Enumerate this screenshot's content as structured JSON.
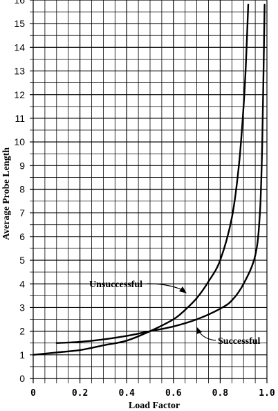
{
  "chart_data": {
    "type": "line",
    "title": "",
    "xlabel": "Load Factor",
    "ylabel": "Average Probe Length",
    "xlim": [
      0,
      1.0
    ],
    "ylim": [
      0,
      16
    ],
    "x_ticks": [
      0,
      0.2,
      0.4,
      0.6,
      0.8,
      1.0
    ],
    "x_tick_labels": [
      "0",
      "0.2",
      "0.4",
      "0.6",
      "0.8",
      "1.0"
    ],
    "y_ticks": [
      0,
      1,
      2,
      3,
      4,
      5,
      6,
      7,
      8,
      9,
      10,
      11,
      12,
      13,
      14,
      15,
      16
    ],
    "y_tick_labels": [
      "0",
      "1",
      "2",
      "3",
      "4",
      "5",
      "6",
      "7",
      "8",
      "9",
      "10",
      "11",
      "12",
      "13",
      "14",
      "15",
      "16"
    ],
    "grid": true,
    "series": [
      {
        "name": "Unsuccessful",
        "x": [
          0.0,
          0.1,
          0.2,
          0.3,
          0.4,
          0.5,
          0.6,
          0.65,
          0.7,
          0.75,
          0.8,
          0.85,
          0.88,
          0.9,
          0.91,
          0.92
        ],
        "y": [
          1.0,
          1.1,
          1.2,
          1.4,
          1.6,
          2.0,
          2.5,
          2.9,
          3.4,
          4.1,
          5.0,
          6.8,
          9.0,
          11.5,
          13.3,
          15.8
        ]
      },
      {
        "name": "Successful",
        "x": [
          0.1,
          0.2,
          0.3,
          0.4,
          0.5,
          0.6,
          0.7,
          0.8,
          0.85,
          0.9,
          0.95,
          0.97,
          0.98,
          0.99
        ],
        "y": [
          1.5,
          1.55,
          1.65,
          1.8,
          2.0,
          2.2,
          2.5,
          2.95,
          3.3,
          4.0,
          5.2,
          7.0,
          10.0,
          15.8
        ]
      }
    ],
    "annotations": [
      {
        "text": "Unsuccessful",
        "target_series": "Unsuccessful"
      },
      {
        "text": "Successful",
        "target_series": "Successful"
      }
    ]
  }
}
